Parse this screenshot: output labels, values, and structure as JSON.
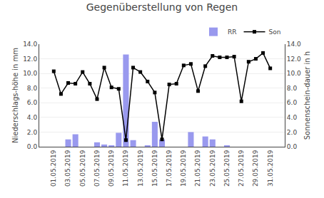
{
  "chart_data": {
    "type": "bar",
    "title": "Gegenüberstellung von Regen",
    "y_label": "Niederschlags-höhe in mm",
    "y2_label": "Sonnenschein-dauer in h",
    "categories": [
      "01.05.2019",
      null,
      "03.05.2019",
      null,
      "05.05.2019",
      null,
      "07.05.2019",
      null,
      "09.05.2019",
      null,
      "11.05.2019",
      null,
      "13.05.2019",
      null,
      "15.05.2019",
      null,
      "17.05.2019",
      null,
      "19.05.2019",
      null,
      "21.05.2019",
      null,
      "23.05.2019",
      null,
      "25.05.2019",
      null,
      "27.05.2019",
      null,
      "29.05.2019",
      null,
      "31.05.2019"
    ],
    "series": [
      {
        "name": "RR",
        "type": "bar",
        "color": "#9999ee",
        "values": [
          0.0,
          0.0,
          1.0,
          1.7,
          0.0,
          0.0,
          0.6,
          0.3,
          0.2,
          1.9,
          12.6,
          0.9,
          0.0,
          0.2,
          3.4,
          1.0,
          0.0,
          0.0,
          0.0,
          2.0,
          0.0,
          1.4,
          1.0,
          0.0,
          0.2,
          0.0,
          0.0,
          0.0,
          0.0,
          0.0,
          0.0
        ]
      },
      {
        "name": "Son",
        "type": "line",
        "axis": "y2",
        "color": "#000000",
        "marker": "square",
        "values": [
          10.3,
          7.2,
          8.7,
          8.6,
          10.2,
          8.6,
          6.5,
          10.8,
          8.1,
          7.9,
          0.9,
          10.8,
          10.2,
          8.9,
          7.4,
          1.0,
          8.5,
          8.6,
          11.1,
          11.3,
          7.6,
          11.0,
          12.4,
          12.2,
          12.2,
          12.3,
          6.2,
          11.6,
          12.0,
          12.8,
          10.7
        ]
      }
    ],
    "ylim": [
      0.0,
      14.0
    ],
    "yticks": [
      {
        "value": 0.0,
        "label": "0.0"
      },
      {
        "value": 2.0,
        "label": "2.0"
      },
      {
        "value": 4.0,
        "label": "4.0"
      },
      {
        "value": 6.0,
        "label": "6.0"
      },
      {
        "value": 8.0,
        "label": "8.0"
      },
      {
        "value": 10.0,
        "label": "10.0"
      },
      {
        "value": 12.0,
        "label": "12.0"
      },
      {
        "value": 14.0,
        "label": "14.0"
      }
    ],
    "y2lim": [
      0.0,
      14.0
    ],
    "y2ticks": [
      {
        "value": 0.0,
        "label": "0.0"
      },
      {
        "value": 2.0,
        "label": "2.0"
      },
      {
        "value": 4.0,
        "label": "4.0"
      },
      {
        "value": 6.0,
        "label": "6.0"
      },
      {
        "value": 8.0,
        "label": "8.0"
      },
      {
        "value": 10.0,
        "label": "10.0"
      },
      {
        "value": 12.0,
        "label": "12.0"
      },
      {
        "value": 14.0,
        "label": "14.0"
      }
    ],
    "grid": true,
    "legend": "upper right"
  }
}
